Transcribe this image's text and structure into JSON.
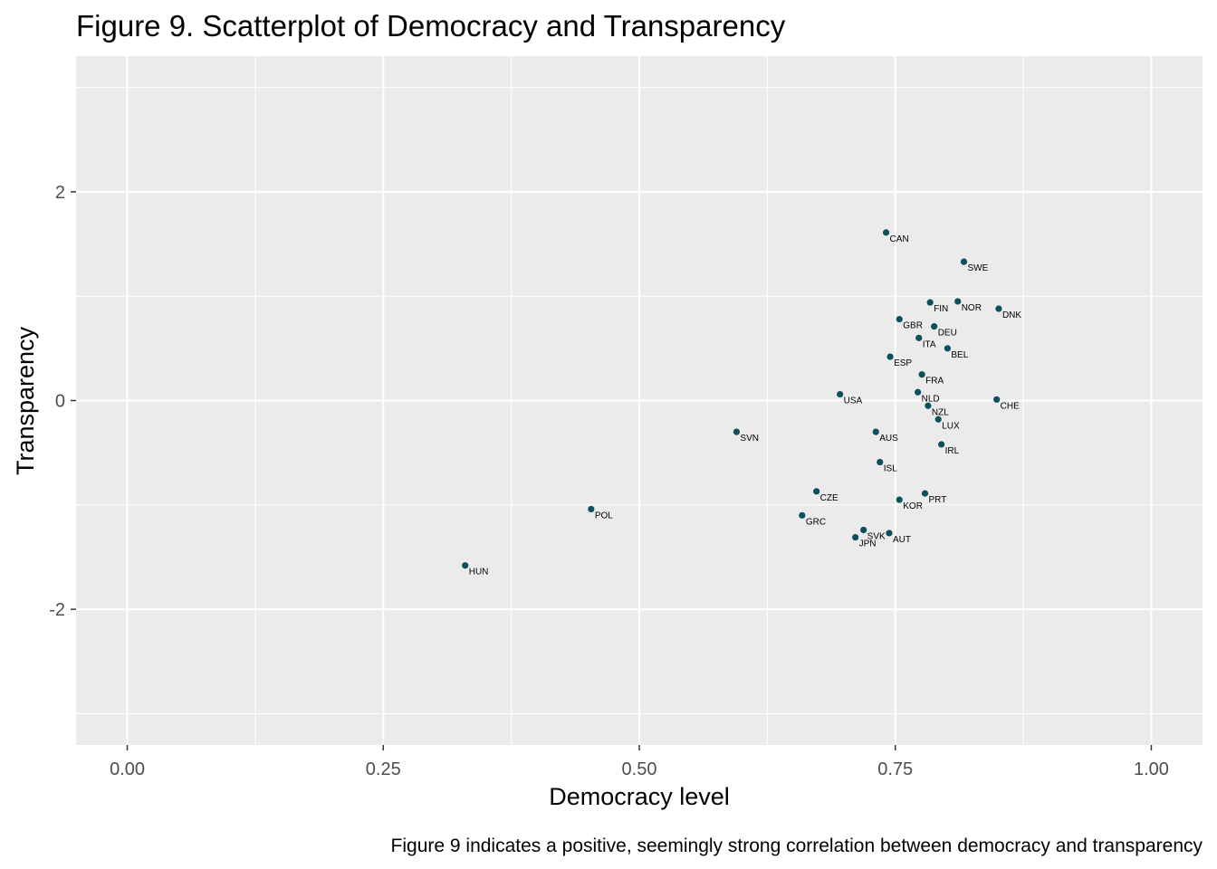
{
  "colors": {
    "panel_background": "#ebebeb",
    "grid_major": "#ffffff",
    "point": "#0d4f5c",
    "text": "#000000",
    "tick_text": "#4d4d4d"
  },
  "chart_data": {
    "type": "scatter",
    "title": "Figure 9. Scatterplot of Democracy and Transparency",
    "caption": "Figure 9 indicates a positive, seemingly strong correlation between democracy and transparency",
    "xlabel": "Democracy level",
    "ylabel": "Transparency",
    "xlim": [
      -0.05,
      1.05
    ],
    "ylim": [
      -3.3,
      3.3
    ],
    "x_ticks": [
      0,
      0.25,
      0.5,
      0.75,
      1.0
    ],
    "x_tick_labels": [
      "0.00",
      "0.25",
      "0.50",
      "0.75",
      "1.00"
    ],
    "y_ticks": [
      -2,
      0,
      2
    ],
    "y_tick_labels": [
      "-2",
      "0",
      "2"
    ],
    "x_minor_ticks": [
      0.125,
      0.375,
      0.625,
      0.875
    ],
    "y_minor_ticks": [
      -3,
      -1,
      1,
      3
    ],
    "grid": true,
    "legend": "none",
    "points": [
      {
        "label": "CAN",
        "x": 0.741,
        "y": 1.61
      },
      {
        "label": "SWE",
        "x": 0.817,
        "y": 1.33
      },
      {
        "label": "FIN",
        "x": 0.784,
        "y": 0.94
      },
      {
        "label": "NOR",
        "x": 0.811,
        "y": 0.95
      },
      {
        "label": "DNK",
        "x": 0.851,
        "y": 0.88
      },
      {
        "label": "GBR",
        "x": 0.754,
        "y": 0.78
      },
      {
        "label": "DEU",
        "x": 0.788,
        "y": 0.71
      },
      {
        "label": "ITA",
        "x": 0.773,
        "y": 0.6
      },
      {
        "label": "BEL",
        "x": 0.801,
        "y": 0.5
      },
      {
        "label": "ESP",
        "x": 0.745,
        "y": 0.42
      },
      {
        "label": "FRA",
        "x": 0.776,
        "y": 0.25
      },
      {
        "label": "USA",
        "x": 0.696,
        "y": 0.06
      },
      {
        "label": "NLD",
        "x": 0.772,
        "y": 0.08
      },
      {
        "label": "CHE",
        "x": 0.849,
        "y": 0.01
      },
      {
        "label": "NZL",
        "x": 0.782,
        "y": -0.05
      },
      {
        "label": "LUX",
        "x": 0.792,
        "y": -0.18
      },
      {
        "label": "SVN",
        "x": 0.595,
        "y": -0.3
      },
      {
        "label": "AUS",
        "x": 0.731,
        "y": -0.3
      },
      {
        "label": "IRL",
        "x": 0.795,
        "y": -0.42
      },
      {
        "label": "ISL",
        "x": 0.735,
        "y": -0.59
      },
      {
        "label": "CZE",
        "x": 0.673,
        "y": -0.87
      },
      {
        "label": "PRT",
        "x": 0.779,
        "y": -0.89
      },
      {
        "label": "KOR",
        "x": 0.754,
        "y": -0.95
      },
      {
        "label": "POL",
        "x": 0.453,
        "y": -1.04
      },
      {
        "label": "GRC",
        "x": 0.659,
        "y": -1.1
      },
      {
        "label": "SVK",
        "x": 0.719,
        "y": -1.24
      },
      {
        "label": "AUT",
        "x": 0.744,
        "y": -1.27
      },
      {
        "label": "JPN",
        "x": 0.711,
        "y": -1.31
      },
      {
        "label": "HUN",
        "x": 0.33,
        "y": -1.58
      }
    ]
  }
}
